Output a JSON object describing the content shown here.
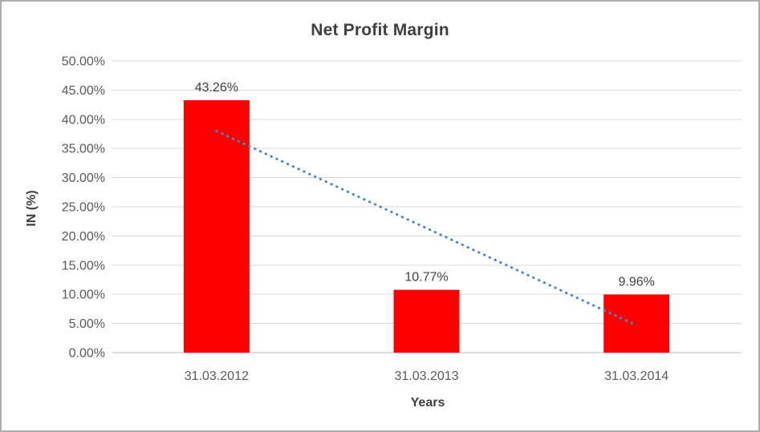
{
  "window": {
    "background": "#ffffff",
    "border_color": "#adadad"
  },
  "chart_data": {
    "type": "bar",
    "title": "Net Profit Margin",
    "xlabel": "Years",
    "ylabel": "IN (%)",
    "categories": [
      "31.03.2012",
      "31.03.2013",
      "31.03.2014"
    ],
    "series": [
      {
        "name": "Net Profit Margin",
        "color": "#ff0000",
        "values": [
          43.26,
          10.77,
          9.96
        ],
        "labels": [
          "43.26%",
          "10.77%",
          "9.96%"
        ]
      }
    ],
    "ylim": [
      0,
      50
    ],
    "ytick_step": 5,
    "ytick_labels": [
      "0.00%",
      "5.00%",
      "10.00%",
      "15.00%",
      "20.00%",
      "25.00%",
      "30.00%",
      "35.00%",
      "40.00%",
      "45.00%",
      "50.00%"
    ],
    "grid": true,
    "legend": "none",
    "trendline": {
      "type": "linear",
      "style": "dotted",
      "color": "#4a86c8",
      "endpoint_values": [
        37.98,
        4.68
      ]
    },
    "colors": {
      "axis_text": "#595959",
      "label_text": "#404040",
      "title_text": "#3f3f3f",
      "gridline": "#d9d9d9",
      "axis_line": "#bfbfbf"
    }
  }
}
